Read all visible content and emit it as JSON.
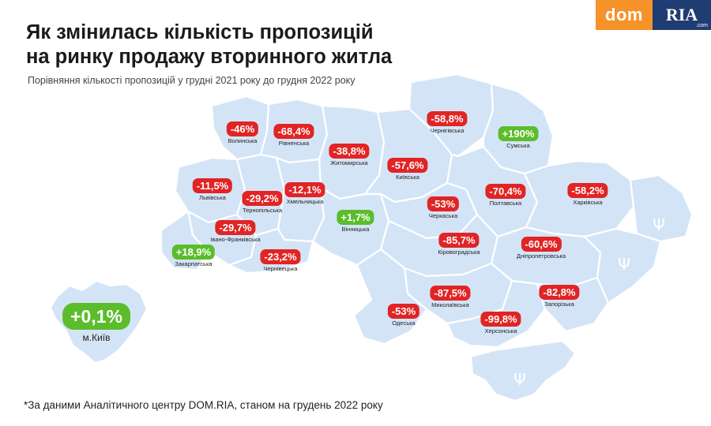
{
  "title_lines": [
    "Як змінилась кількість пропозицій",
    "на ринку продажу вторинного житла"
  ],
  "subtitle": "Порівняння кількості пропозицій у грудні 2021 року до грудня 2022 року",
  "footnote": "*За даними Аналітичного центру DOM.RIA, станом на грудень 2022 року",
  "logo": {
    "dom": "dom",
    "ria": "RIA",
    "com": ".com"
  },
  "colors": {
    "negative": "#e12424",
    "positive": "#5bbd2b",
    "region_fill": "#d4e4f7",
    "logo_orange": "#f6922a",
    "logo_navy": "#1f3c73"
  },
  "kyiv": {
    "value": "+0,1%",
    "name": "м.Київ"
  },
  "regions": [
    {
      "name": "Волинська",
      "value": "-46%",
      "sign": "neg"
    },
    {
      "name": "Рівненська",
      "value": "-68,4%",
      "sign": "neg"
    },
    {
      "name": "Житомирська",
      "value": "-38,8%",
      "sign": "neg"
    },
    {
      "name": "Київська",
      "value": "-57,6%",
      "sign": "neg"
    },
    {
      "name": "Чернігівська",
      "value": "-58,8%",
      "sign": "neg"
    },
    {
      "name": "Сумська",
      "value": "+190%",
      "sign": "pos"
    },
    {
      "name": "Львівська",
      "value": "-11,5%",
      "sign": "neg"
    },
    {
      "name": "Тернопільська",
      "value": "-29,2%",
      "sign": "neg"
    },
    {
      "name": "Хмельницька",
      "value": "-12,1%",
      "sign": "neg"
    },
    {
      "name": "Вінницька",
      "value": "+1,7%",
      "sign": "pos"
    },
    {
      "name": "Черкаська",
      "value": "-53%",
      "sign": "neg"
    },
    {
      "name": "Полтавська",
      "value": "-70,4%",
      "sign": "neg"
    },
    {
      "name": "Харківська",
      "value": "-58,2%",
      "sign": "neg"
    },
    {
      "name": "Івано-Франківська",
      "value": "-29,7%",
      "sign": "neg"
    },
    {
      "name": "Закарпатська",
      "value": "+18,9%",
      "sign": "pos"
    },
    {
      "name": "Чернівецька",
      "value": "-23,2%",
      "sign": "neg"
    },
    {
      "name": "Кіровоградська",
      "value": "-85,7%",
      "sign": "neg"
    },
    {
      "name": "Дніпропетровська",
      "value": "-60,6%",
      "sign": "neg"
    },
    {
      "name": "Миколаївська",
      "value": "-87,5%",
      "sign": "neg"
    },
    {
      "name": "Одеська",
      "value": "-53%",
      "sign": "neg"
    },
    {
      "name": "Херсонська",
      "value": "-99,8%",
      "sign": "neg"
    },
    {
      "name": "Запорізька",
      "value": "-82,8%",
      "sign": "neg"
    }
  ],
  "symbols": {
    "trident": "Ψ"
  }
}
